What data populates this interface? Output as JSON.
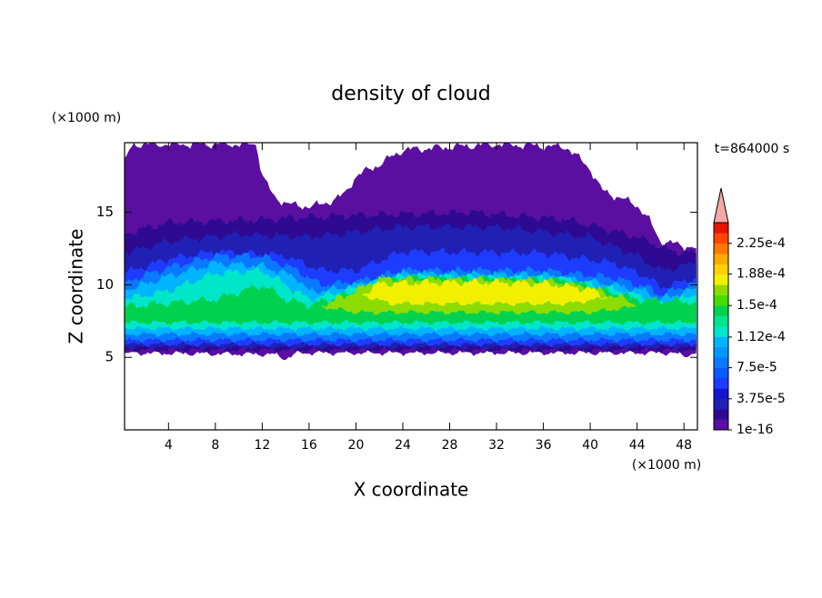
{
  "chart_data": {
    "type": "contour",
    "title": "density of cloud",
    "x_label": "X coordinate",
    "y_label": "Z coordinate",
    "x_unit": "(×1000 m)",
    "y_unit": "(×1000 m)",
    "time_label": "t=864000 s",
    "xlim": [
      0.25,
      49.15
    ],
    "xticks": [
      4,
      8,
      12,
      16,
      20,
      24,
      28,
      32,
      36,
      40,
      44,
      48
    ],
    "ylim": [
      0,
      19.8
    ],
    "yticks": [
      5,
      10,
      15
    ],
    "colorbar": {
      "clim": [
        1e-16,
        0.00025
      ],
      "ticks": [
        1e-16,
        {
          "value": 3.75e-05,
          "label": "3.75e-5"
        },
        {
          "value": 7.5e-05,
          "label": "7.5e-5"
        },
        {
          "value": 0.000112,
          "label": "1.12e-4"
        },
        {
          "value": 0.00015,
          "label": "1.5e-4"
        },
        {
          "value": 0.000188,
          "label": "1.88e-4"
        },
        {
          "value": 0.000225,
          "label": "2.25e-4"
        }
      ],
      "colors": [
        "#5a0fa0",
        "#2d0a91",
        "#2020b4",
        "#1414d2",
        "#1e3cff",
        "#0a5aff",
        "#0a78ff",
        "#0096ff",
        "#00b4ff",
        "#00e6c8",
        "#00e68c",
        "#00d250",
        "#46dc00",
        "#8cdc00",
        "#f0f000",
        "#ffd200",
        "#ffaa00",
        "#ff7800",
        "#ff4600",
        "#e61400"
      ],
      "over_color": "#f4a8a8"
    }
  }
}
